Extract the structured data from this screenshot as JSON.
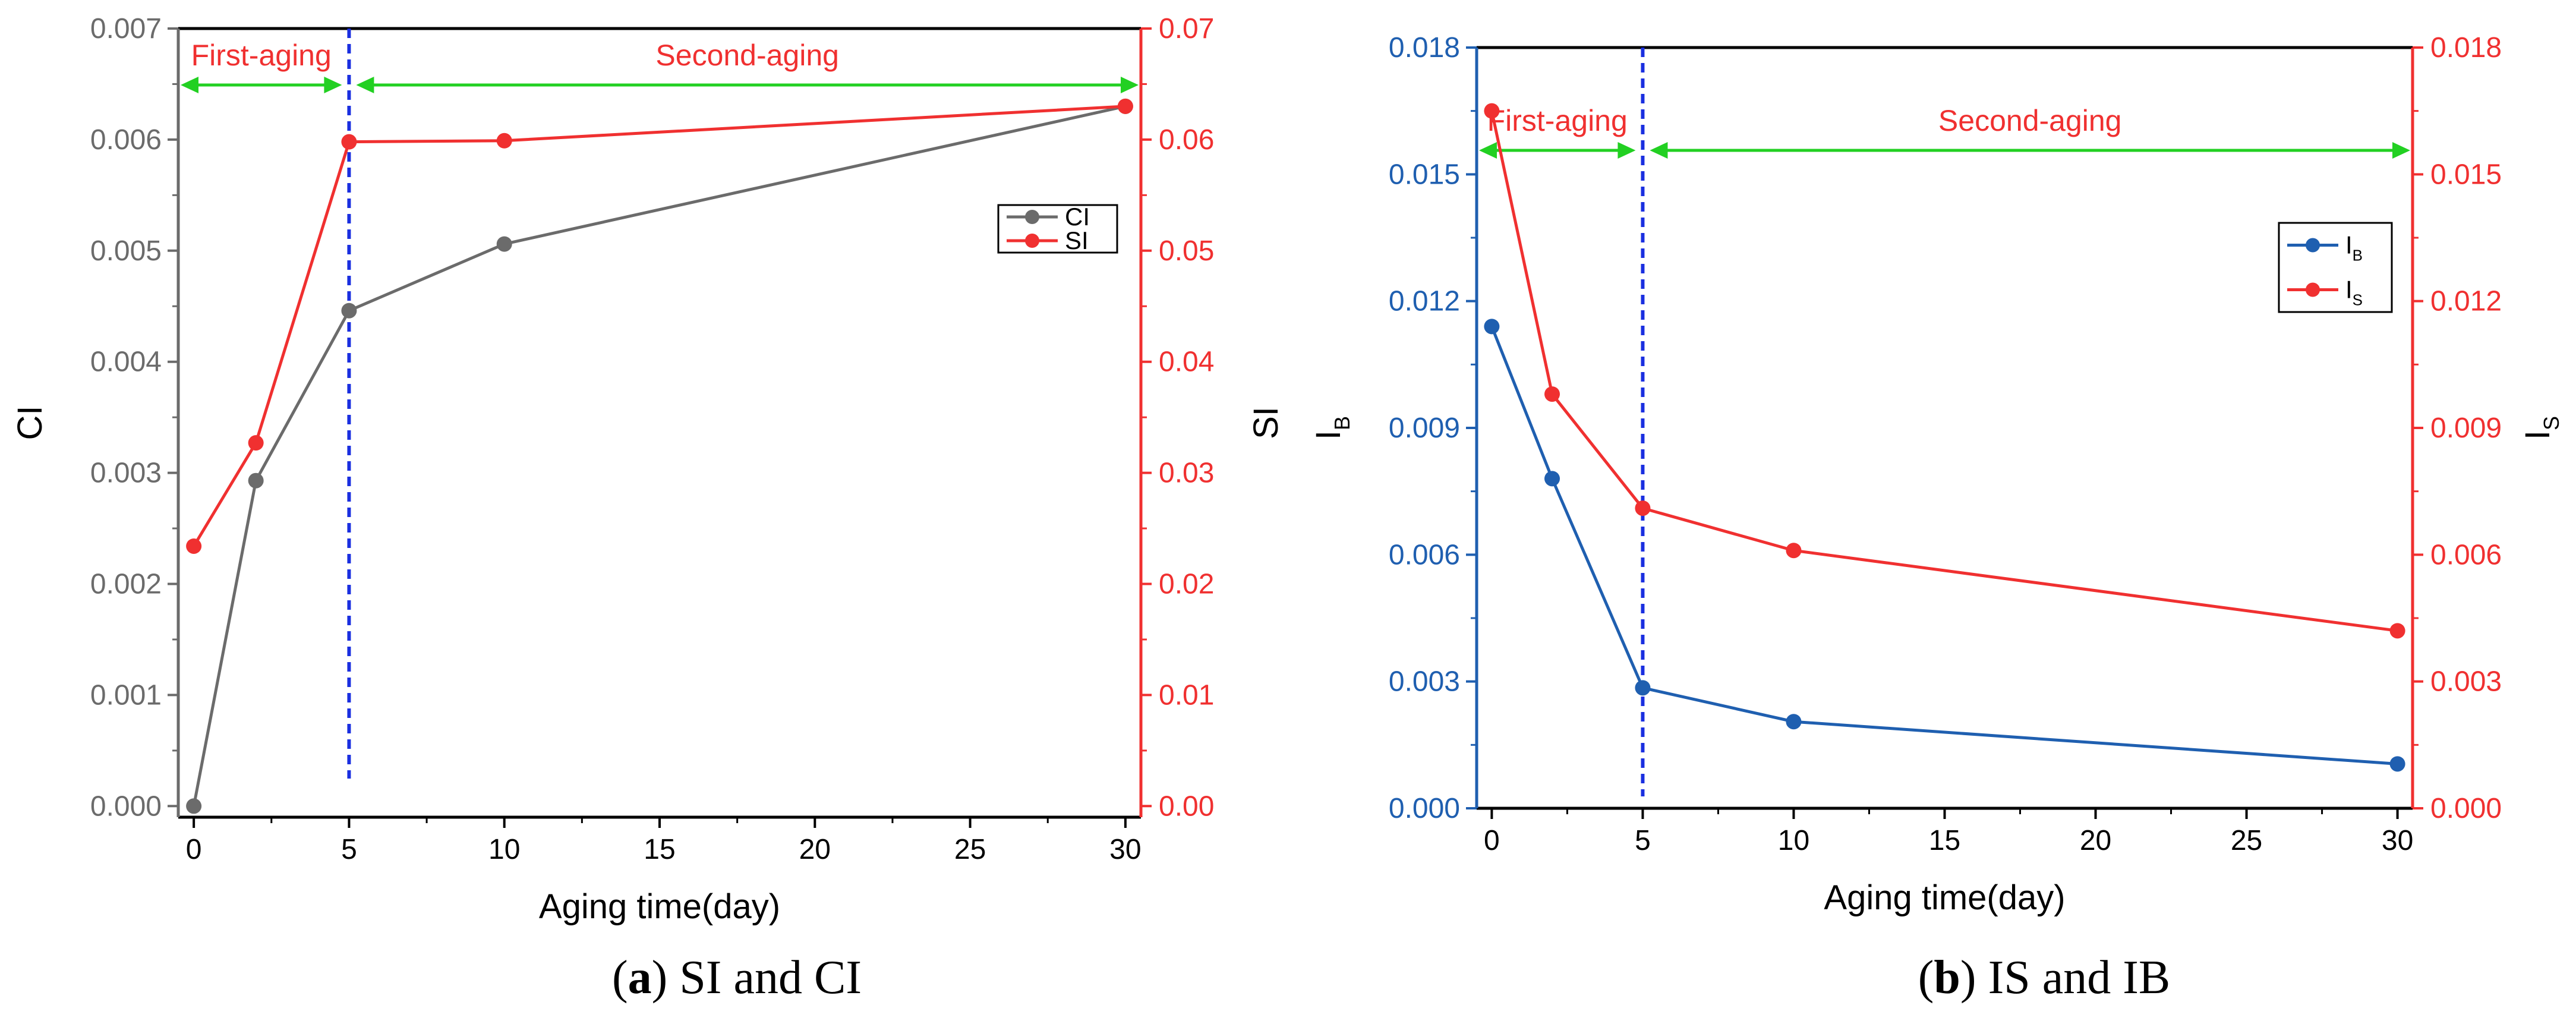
{
  "chart_data": [
    {
      "type": "line",
      "caption_letter": "a",
      "caption_text": "SI and CI",
      "xlabel": "Aging time(day)",
      "ylabel_left": "CI",
      "ylabel_right": "SI",
      "x_ticks": [
        "0",
        "5",
        "10",
        "15",
        "20",
        "25",
        "30"
      ],
      "xlim": [
        -0.5,
        30.5
      ],
      "ylim_left": [
        -0.0001,
        0.007
      ],
      "ylim_right": [
        -0.001,
        0.07
      ],
      "y_ticks_left": [
        "0.000",
        "0.001",
        "0.002",
        "0.003",
        "0.004",
        "0.005",
        "0.006",
        "0.007"
      ],
      "y_ticks_right": [
        "0.00",
        "0.01",
        "0.02",
        "0.03",
        "0.04",
        "0.05",
        "0.06",
        "0.07"
      ],
      "series": [
        {
          "name": "CI",
          "axis": "left",
          "color": "#6b6b6b",
          "x": [
            0,
            2,
            5,
            10,
            30
          ],
          "values": [
            0.0,
            0.00293,
            0.00446,
            0.00506,
            0.0063
          ]
        },
        {
          "name": "SI",
          "axis": "right",
          "color": "#f03030",
          "x": [
            0,
            2,
            5,
            10,
            30
          ],
          "values": [
            0.0234,
            0.0327,
            0.0598,
            0.0599,
            0.063
          ]
        }
      ],
      "divider_x": 5,
      "phases": [
        {
          "label": "First-aging",
          "from": -0.5,
          "to": 5
        },
        {
          "label": "Second-aging",
          "from": 5,
          "to": 30
        }
      ],
      "legend_position": "upper-right",
      "axis_colors": {
        "left": "#6b6b6b",
        "right": "#f03030"
      }
    },
    {
      "type": "line",
      "caption_letter": "b",
      "caption_text": "IS and IB",
      "xlabel": "Aging time(day)",
      "ylabel_left": "I",
      "ylabel_left_sub": "B",
      "ylabel_right": "I",
      "ylabel_right_sub": "S",
      "x_ticks": [
        "0",
        "5",
        "10",
        "15",
        "20",
        "25",
        "30"
      ],
      "xlim": [
        -0.5,
        30.5
      ],
      "ylim_left": [
        0,
        0.018
      ],
      "ylim_right": [
        0,
        0.018
      ],
      "y_ticks_left": [
        "0.000",
        "0.003",
        "0.006",
        "0.009",
        "0.012",
        "0.015",
        "0.018"
      ],
      "y_ticks_right": [
        "0.000",
        "0.003",
        "0.006",
        "0.009",
        "0.012",
        "0.015",
        "0.018"
      ],
      "series": [
        {
          "name": "I",
          "sub": "B",
          "axis": "left",
          "color": "#1f5fb0",
          "x": [
            0,
            2,
            5,
            10,
            30
          ],
          "values": [
            0.0114,
            0.0078,
            0.00285,
            0.00205,
            0.00105
          ]
        },
        {
          "name": "I",
          "sub": "S",
          "axis": "right",
          "color": "#f03030",
          "x": [
            0,
            2,
            5,
            10,
            30
          ],
          "values": [
            0.0165,
            0.0098,
            0.0071,
            0.0061,
            0.0042
          ]
        }
      ],
      "divider_x": 5,
      "phases": [
        {
          "label": "First-aging",
          "from": -0.5,
          "to": 5
        },
        {
          "label": "Second-aging",
          "from": 5,
          "to": 30
        }
      ],
      "legend_position": "upper-right",
      "axis_colors": {
        "left": "#1f5fb0",
        "right": "#f03030"
      }
    }
  ]
}
